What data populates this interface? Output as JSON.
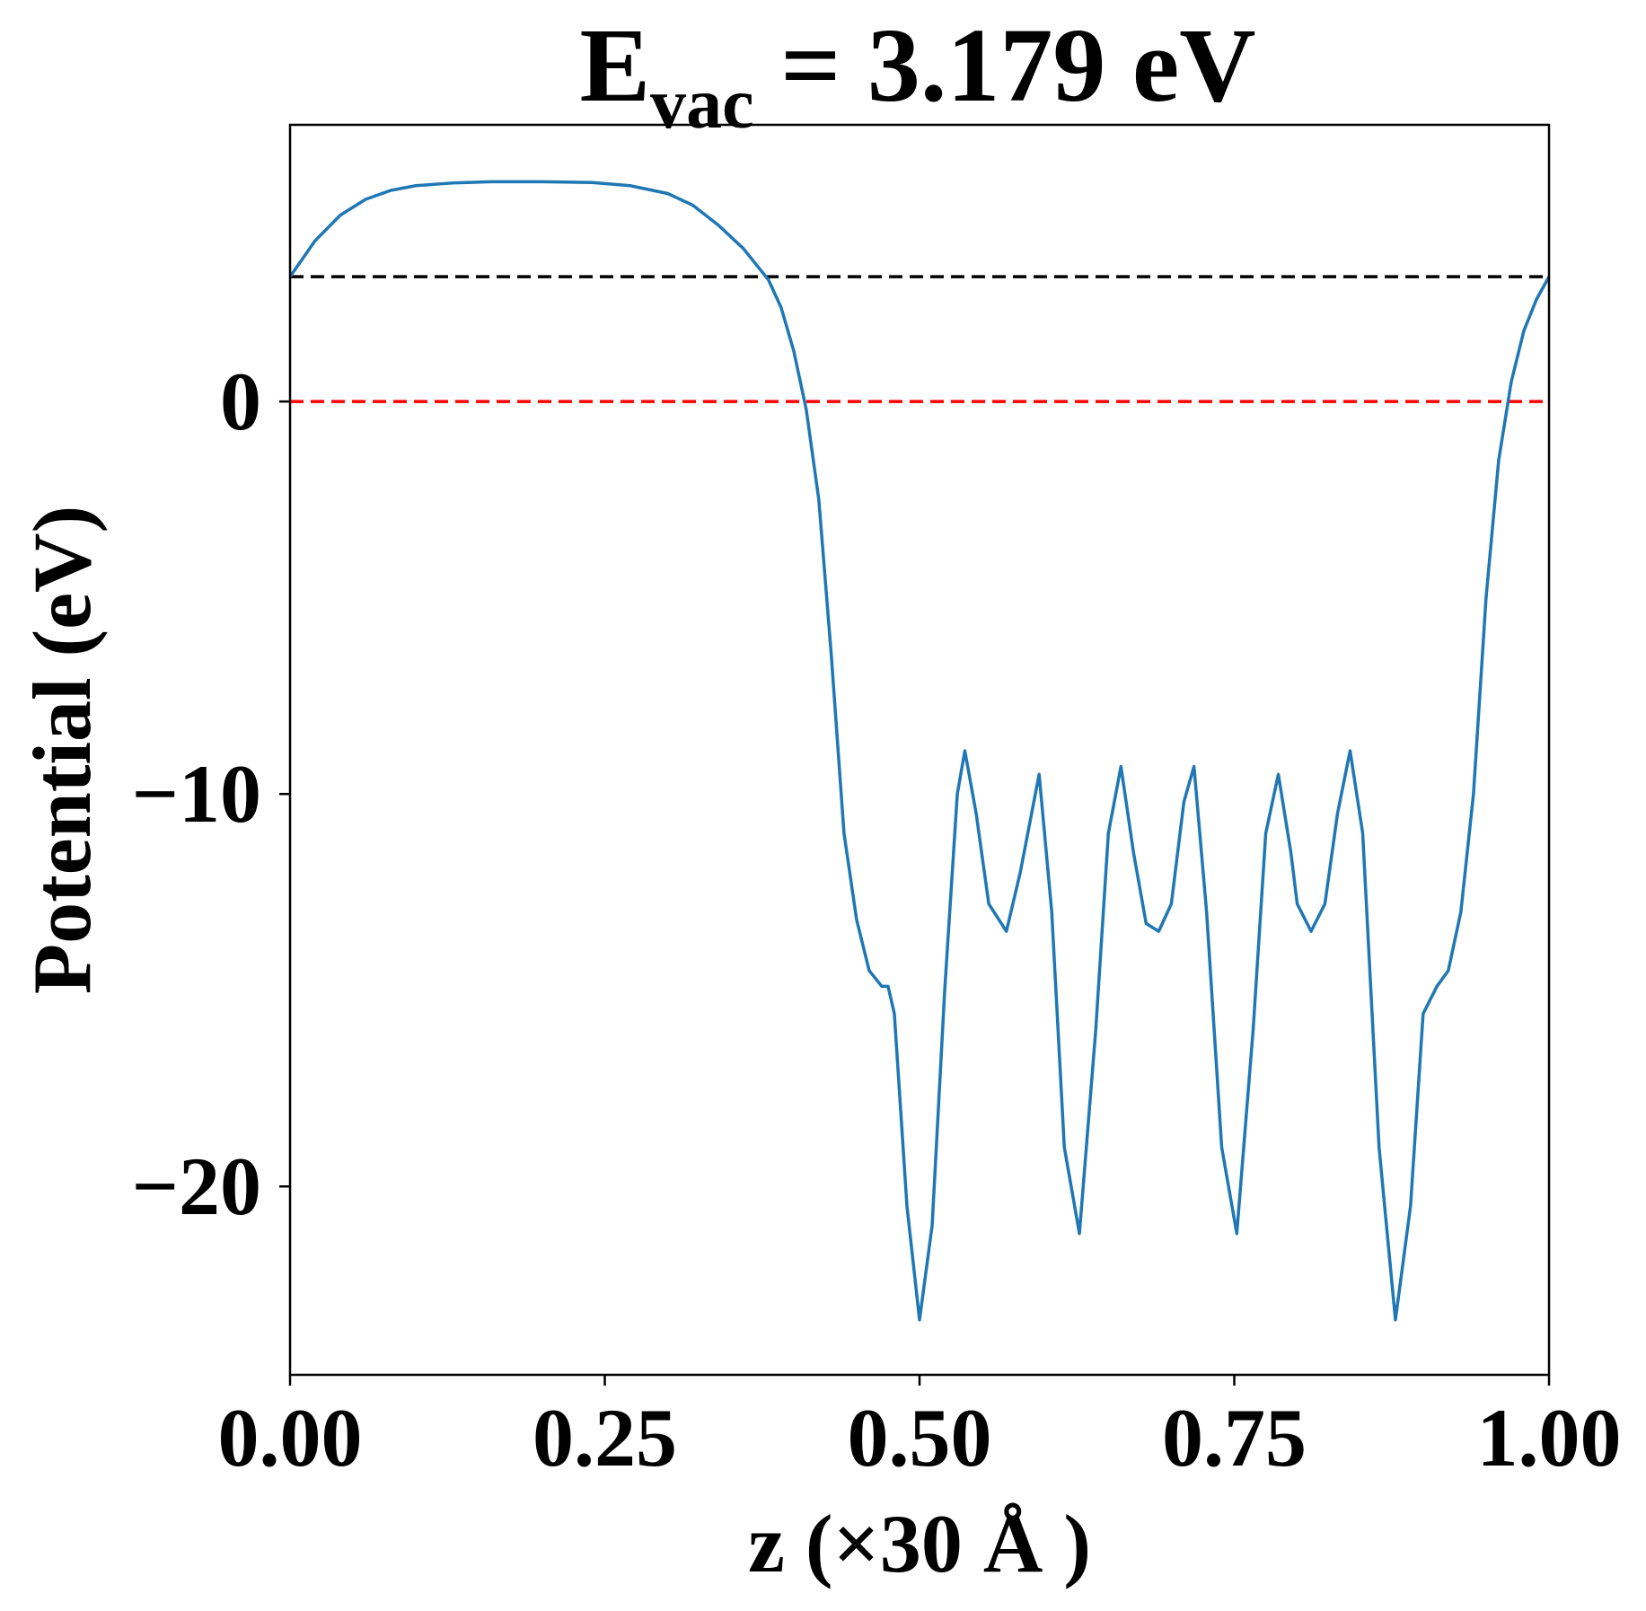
{
  "chart_data": {
    "type": "line",
    "title": {
      "base": "E",
      "subscript": "vac",
      "rest": " = 3.179 eV"
    },
    "xlabel": "z (×30 Å )",
    "ylabel": "Potential (eV)",
    "xlim": [
      0,
      1
    ],
    "ylim": [
      -24.8,
      7.05
    ],
    "xticks": [
      {
        "value": 0,
        "label": "0.00"
      },
      {
        "value": 0.25,
        "label": "0.25"
      },
      {
        "value": 0.5,
        "label": "0.50"
      },
      {
        "value": 0.75,
        "label": "0.75"
      },
      {
        "value": 1,
        "label": "1.00"
      }
    ],
    "yticks": [
      {
        "value": 0,
        "label": "0"
      },
      {
        "value": -10,
        "label": "−10"
      },
      {
        "value": -20,
        "label": "−20"
      }
    ],
    "hlines": [
      {
        "value": 3.179,
        "color": "#000000"
      },
      {
        "value": 0,
        "color": "#ff0000"
      }
    ],
    "x": [
      0,
      0.02,
      0.04,
      0.06,
      0.08,
      0.1,
      0.13,
      0.16,
      0.2,
      0.24,
      0.27,
      0.3,
      0.32,
      0.34,
      0.36,
      0.38,
      0.39,
      0.4,
      0.41,
      0.42,
      0.43,
      0.44,
      0.45,
      0.46,
      0.47,
      0.475,
      0.48,
      0.49,
      0.5,
      0.51,
      0.52,
      0.53,
      0.536,
      0.545,
      0.555,
      0.569,
      0.58,
      0.595,
      0.605,
      0.615,
      0.627,
      0.64,
      0.65,
      0.66,
      0.67,
      0.68,
      0.69,
      0.7,
      0.71,
      0.718,
      0.728,
      0.74,
      0.752,
      0.765,
      0.775,
      0.785,
      0.795,
      0.8,
      0.811,
      0.822,
      0.832,
      0.842,
      0.852,
      0.865,
      0.878,
      0.89,
      0.9,
      0.911,
      0.92,
      0.93,
      0.94,
      0.95,
      0.96,
      0.97,
      0.98,
      0.99,
      1.0
    ],
    "series": [
      {
        "name": "potential",
        "color": "#1f77b4",
        "values": [
          3.18,
          4.1,
          4.75,
          5.15,
          5.38,
          5.5,
          5.57,
          5.6,
          5.6,
          5.58,
          5.5,
          5.3,
          5.0,
          4.5,
          3.9,
          3.1,
          2.4,
          1.3,
          -0.2,
          -2.5,
          -6.5,
          -11,
          -13.2,
          -14.5,
          -14.9,
          -14.9,
          -15.6,
          -20.5,
          -23.4,
          -21,
          -15,
          -10,
          -8.9,
          -10.5,
          -12.8,
          -13.5,
          -12,
          -9.5,
          -13,
          -19,
          -21.2,
          -16,
          -11,
          -9.3,
          -11.5,
          -13.3,
          -13.5,
          -12.8,
          -10.2,
          -9.3,
          -13,
          -19,
          -21.2,
          -16,
          -11,
          -9.5,
          -11.5,
          -12.8,
          -13.5,
          -12.8,
          -10.5,
          -8.9,
          -11,
          -19,
          -23.4,
          -20.5,
          -15.6,
          -14.9,
          -14.5,
          -13,
          -10,
          -5,
          -1.5,
          0.5,
          1.8,
          2.6,
          3.18
        ]
      }
    ]
  }
}
